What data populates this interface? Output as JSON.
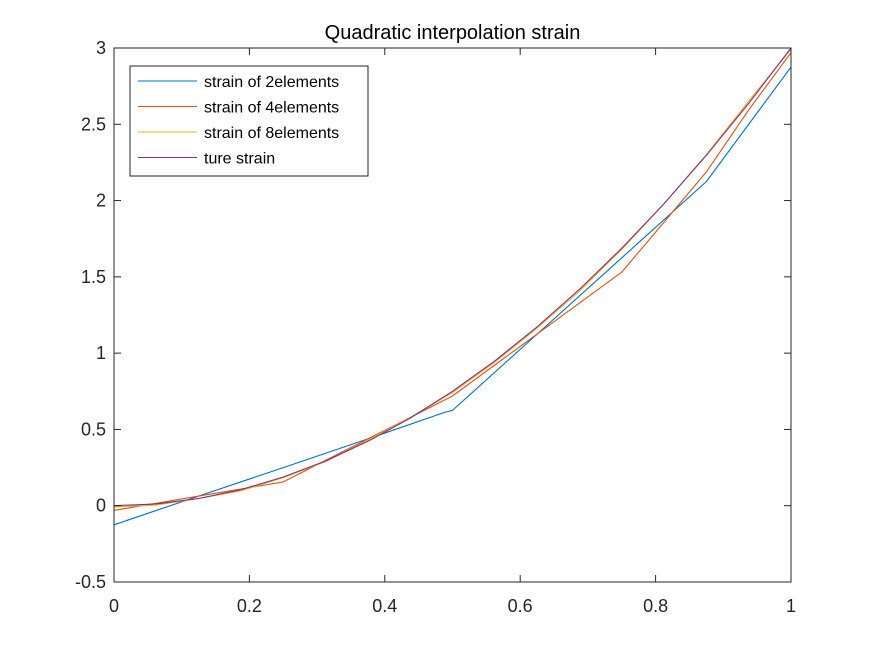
{
  "chart_data": {
    "type": "line",
    "title": "Quadratic interpolation strain",
    "xlabel": "",
    "ylabel": "",
    "xlim": [
      0,
      1
    ],
    "ylim": [
      -0.5,
      3
    ],
    "xticks": [
      0,
      0.2,
      0.4,
      0.6,
      0.8,
      1
    ],
    "xtick_labels": [
      "0",
      "0.2",
      "0.4",
      "0.6",
      "0.8",
      "1"
    ],
    "yticks": [
      -0.5,
      0,
      0.5,
      1,
      1.5,
      2,
      2.5,
      3
    ],
    "ytick_labels": [
      "-0.5",
      "0",
      "0.5",
      "1",
      "1.5",
      "2",
      "2.5",
      "3"
    ],
    "grid": false,
    "legend_position": "top-left",
    "series": [
      {
        "name": "strain of 2elements",
        "color": "#0072BD",
        "x": [
          0,
          0.125,
          0.25,
          0.375,
          0.49,
          0.5,
          0.625,
          0.75,
          0.875,
          1
        ],
        "y": [
          -0.125,
          0.063,
          0.25,
          0.438,
          0.614,
          0.625,
          1.125,
          1.625,
          2.125,
          2.875
        ]
      },
      {
        "name": "strain of 4elements",
        "color": "#D95319",
        "x": [
          0,
          0.0625,
          0.125,
          0.1875,
          0.25,
          0.3125,
          0.375,
          0.4375,
          0.5,
          0.5625,
          0.625,
          0.6875,
          0.75,
          0.8125,
          0.875,
          0.9375,
          1
        ],
        "y": [
          -0.031,
          0.016,
          0.063,
          0.109,
          0.156,
          0.297,
          0.438,
          0.578,
          0.719,
          0.922,
          1.125,
          1.328,
          1.531,
          1.859,
          2.188,
          2.594,
          2.969
        ]
      },
      {
        "name": "strain of 8elements",
        "color": "#EDB120",
        "x": [
          0,
          0.0625,
          0.125,
          0.1875,
          0.25,
          0.3125,
          0.375,
          0.4375,
          0.5,
          0.5625,
          0.625,
          0.6875,
          0.75,
          0.8125,
          0.875,
          0.9375,
          1
        ],
        "y": [
          -0.008,
          0.004,
          0.047,
          0.098,
          0.184,
          0.289,
          0.43,
          0.578,
          0.742,
          0.941,
          1.164,
          1.406,
          1.68,
          1.98,
          2.301,
          2.652,
          2.992
        ]
      },
      {
        "name": "ture strain",
        "color": "#7E2F8E",
        "x": [
          0,
          0.0625,
          0.125,
          0.1875,
          0.25,
          0.3125,
          0.375,
          0.4375,
          0.5,
          0.5625,
          0.625,
          0.6875,
          0.75,
          0.8125,
          0.875,
          0.9375,
          1
        ],
        "y": [
          0,
          0.012,
          0.047,
          0.105,
          0.188,
          0.293,
          0.422,
          0.574,
          0.75,
          0.949,
          1.172,
          1.418,
          1.688,
          1.98,
          2.297,
          2.637,
          3
        ]
      }
    ]
  }
}
